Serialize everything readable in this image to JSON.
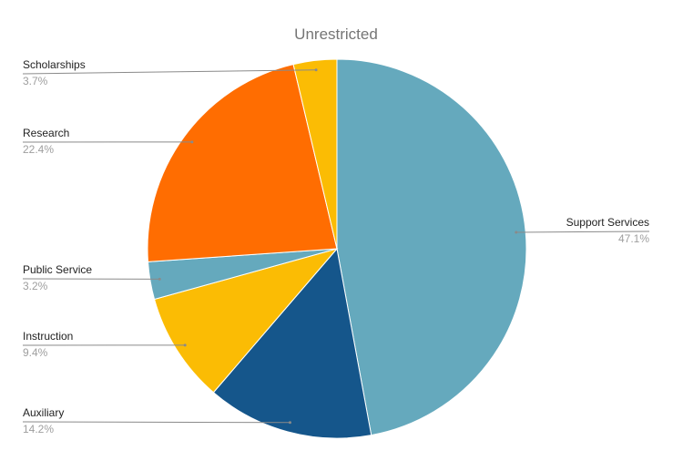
{
  "chart_data": {
    "type": "pie",
    "title": "Unrestricted",
    "legend": "none",
    "slices": [
      {
        "name": "Support Services",
        "value": 47.1,
        "label": "47.1%",
        "color": "#65a9bd"
      },
      {
        "name": "Auxiliary",
        "value": 14.2,
        "label": "14.2%",
        "color": "#15568b"
      },
      {
        "name": "Instruction",
        "value": 9.4,
        "label": "9.4%",
        "color": "#fbbc04"
      },
      {
        "name": "Public Service",
        "value": 3.2,
        "label": "3.2%",
        "color": "#65a9bd"
      },
      {
        "name": "Research",
        "value": 22.4,
        "label": "22.4%",
        "color": "#ff6d01"
      },
      {
        "name": "Scholarships",
        "value": 3.7,
        "label": "3.7%",
        "color": "#fbbc04"
      }
    ]
  }
}
